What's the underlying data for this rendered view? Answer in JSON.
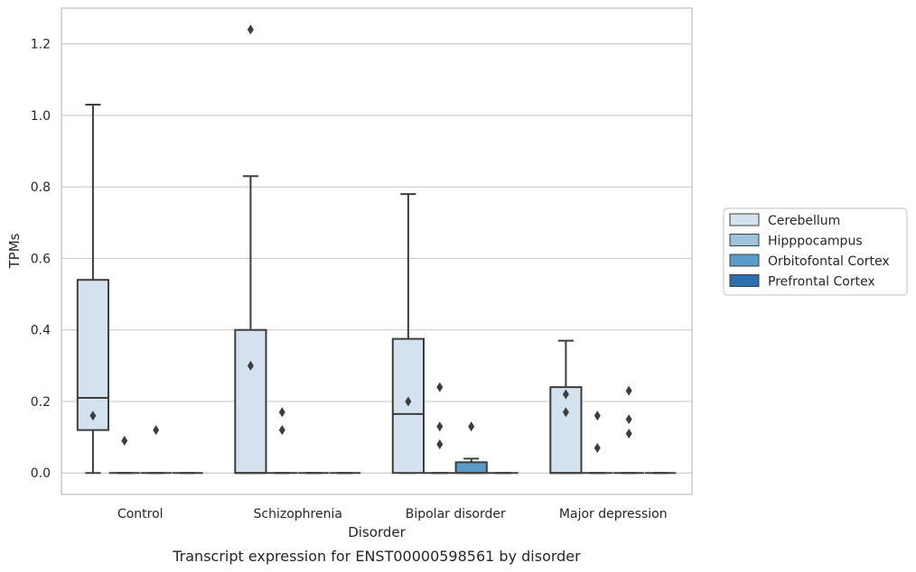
{
  "chart_data": {
    "type": "box",
    "caption": "Transcript expression for ENST00000598561 by disorder",
    "xlabel": "Disorder",
    "ylabel": "TPMs",
    "ylim": [
      -0.06,
      1.3
    ],
    "yticks": [
      "0.0",
      "0.2",
      "0.4",
      "0.6",
      "0.8",
      "1.0",
      "1.2"
    ],
    "categories": [
      "Control",
      "Schizophrenia",
      "Bipolar disorder",
      "Major depression"
    ],
    "grid": "horizontal",
    "legend_position": "right",
    "series": [
      {
        "name": "Cerebellum",
        "color": "#d4e2f0",
        "boxes": [
          {
            "q1": 0.12,
            "median": 0.21,
            "q3": 0.54,
            "whisker_low": 0.0,
            "whisker_high": 1.03,
            "outliers": [
              0.16
            ]
          },
          {
            "q1": 0.0,
            "median": 0.0,
            "q3": 0.4,
            "whisker_low": 0.0,
            "whisker_high": 0.83,
            "outliers": [
              1.24,
              0.3
            ]
          },
          {
            "q1": 0.0,
            "median": 0.165,
            "q3": 0.375,
            "whisker_low": 0.0,
            "whisker_high": 0.78,
            "outliers": [
              0.2
            ]
          },
          {
            "q1": 0.0,
            "median": 0.0,
            "q3": 0.24,
            "whisker_low": 0.0,
            "whisker_high": 0.37,
            "outliers": [
              0.22,
              0.17
            ]
          }
        ]
      },
      {
        "name": "Hipppocampus",
        "color": "#9ec4dc",
        "boxes": [
          {
            "q1": 0.0,
            "median": 0.0,
            "q3": 0.0,
            "whisker_low": 0.0,
            "whisker_high": 0.0,
            "outliers": [
              0.09
            ]
          },
          {
            "q1": 0.0,
            "median": 0.0,
            "q3": 0.0,
            "whisker_low": 0.0,
            "whisker_high": 0.0,
            "outliers": [
              0.17,
              0.12
            ]
          },
          {
            "q1": 0.0,
            "median": 0.0,
            "q3": 0.0,
            "whisker_low": 0.0,
            "whisker_high": 0.0,
            "outliers": [
              0.24,
              0.13,
              0.08
            ]
          },
          {
            "q1": 0.0,
            "median": 0.0,
            "q3": 0.0,
            "whisker_low": 0.0,
            "whisker_high": 0.0,
            "outliers": [
              0.16,
              0.07
            ]
          }
        ]
      },
      {
        "name": "Orbitofontal Cortex",
        "color": "#5a9bc7",
        "boxes": [
          {
            "q1": 0.0,
            "median": 0.0,
            "q3": 0.0,
            "whisker_low": 0.0,
            "whisker_high": 0.0,
            "outliers": [
              0.12
            ]
          },
          {
            "q1": 0.0,
            "median": 0.0,
            "q3": 0.0,
            "whisker_low": 0.0,
            "whisker_high": 0.0,
            "outliers": []
          },
          {
            "q1": 0.0,
            "median": 0.0,
            "q3": 0.03,
            "whisker_low": 0.0,
            "whisker_high": 0.04,
            "outliers": [
              0.13
            ]
          },
          {
            "q1": 0.0,
            "median": 0.0,
            "q3": 0.0,
            "whisker_low": 0.0,
            "whisker_high": 0.0,
            "outliers": [
              0.23,
              0.15,
              0.11
            ]
          }
        ]
      },
      {
        "name": "Prefrontal Cortex",
        "color": "#2f6eac",
        "boxes": [
          {
            "q1": 0.0,
            "median": 0.0,
            "q3": 0.0,
            "whisker_low": 0.0,
            "whisker_high": 0.0,
            "outliers": []
          },
          {
            "q1": 0.0,
            "median": 0.0,
            "q3": 0.0,
            "whisker_low": 0.0,
            "whisker_high": 0.0,
            "outliers": []
          },
          {
            "q1": 0.0,
            "median": 0.0,
            "q3": 0.0,
            "whisker_low": 0.0,
            "whisker_high": 0.0,
            "outliers": []
          },
          {
            "q1": 0.0,
            "median": 0.0,
            "q3": 0.0,
            "whisker_low": 0.0,
            "whisker_high": 0.0,
            "outliers": []
          }
        ]
      }
    ]
  }
}
